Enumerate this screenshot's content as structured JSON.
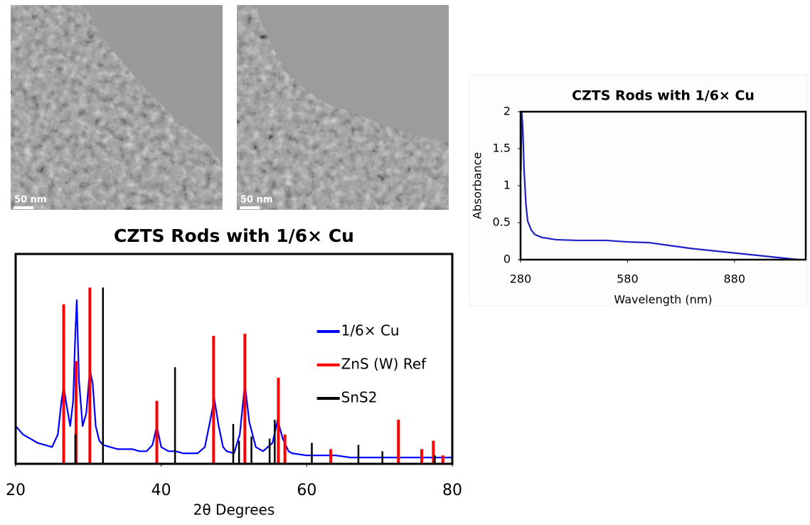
{
  "images": [
    {
      "scale_label": "50 nm"
    },
    {
      "scale_label": "50 nm"
    }
  ],
  "chart_data": [
    {
      "type": "line",
      "title": "CZTS Rods with 1/6× Cu",
      "x_label": "2θ Degrees",
      "xlim": [
        20,
        80
      ],
      "xticks": [
        20,
        40,
        60,
        80
      ],
      "ylim": [
        0,
        100
      ],
      "grid": false,
      "legend": "right",
      "series": [
        {
          "name": "1/6× Cu",
          "color": "#0000ff",
          "style": "line",
          "x": [
            20,
            21,
            22,
            23,
            24,
            25,
            25.8,
            26.3,
            26.6,
            27,
            27.5,
            27.9,
            28.2,
            28.4,
            28.7,
            29.2,
            29.7,
            30.2,
            30.6,
            31,
            31.5,
            32,
            33,
            34,
            35,
            36,
            37,
            38,
            38.8,
            39.4,
            40,
            41,
            42,
            43,
            44,
            45,
            46,
            46.7,
            47.3,
            47.9,
            48.5,
            49,
            50,
            50.8,
            51.5,
            52.1,
            53,
            54,
            55.3,
            56,
            56.7,
            57.5,
            58,
            60,
            62,
            64,
            66,
            68,
            70,
            72,
            74,
            76,
            78,
            80
          ],
          "values": [
            18,
            14,
            12,
            10,
            9,
            8,
            14,
            30,
            37,
            28,
            18,
            30,
            62,
            78,
            40,
            18,
            24,
            45,
            38,
            18,
            11,
            9,
            8,
            7,
            7,
            7,
            6,
            6,
            9,
            18,
            8,
            6,
            6,
            5,
            5,
            5,
            8,
            20,
            31,
            18,
            8,
            6,
            5,
            14,
            38,
            20,
            8,
            6,
            10,
            21,
            12,
            6,
            5,
            4,
            4,
            4,
            3,
            3,
            3,
            3,
            3,
            3,
            3,
            3
          ]
        },
        {
          "name": "ZnS (W) Ref",
          "color": "#ff0000",
          "style": "stick",
          "x": [
            26.6,
            28.3,
            30.2,
            39.4,
            47.2,
            51.5,
            56.1,
            57.0,
            63.3,
            72.6,
            75.8,
            77.4,
            78.7
          ],
          "values": [
            76,
            49,
            84,
            30,
            61,
            62,
            41,
            14,
            7,
            21,
            7,
            11,
            4
          ]
        },
        {
          "name": "SnS2",
          "color": "#000000",
          "style": "stick",
          "x": [
            28.2,
            32.0,
            41.9,
            49.9,
            50.7,
            52.4,
            54.9,
            55.6,
            60.7,
            67.1,
            70.4,
            77.6
          ],
          "values": [
            14,
            84,
            46,
            19,
            11,
            13,
            12,
            21,
            10,
            9,
            6,
            4
          ]
        }
      ]
    },
    {
      "type": "line",
      "title": "CZTS Rods with 1/6× Cu",
      "x_label": "Wavelength (nm)",
      "y_label": "Absorbance",
      "xlim": [
        280,
        1080
      ],
      "xticks": [
        280,
        580,
        880
      ],
      "ylim": [
        0,
        2
      ],
      "yticks": [
        0,
        0.5,
        1,
        1.5,
        2
      ],
      "grid": false,
      "x": [
        281,
        283,
        286,
        290,
        295,
        300,
        310,
        320,
        340,
        380,
        440,
        520,
        580,
        640,
        700,
        760,
        820,
        880,
        940,
        1000,
        1060
      ],
      "series": [
        {
          "color": "#1f1fc8",
          "style": "line",
          "values": [
            1.2,
            2.0,
            1.8,
            1.2,
            0.75,
            0.52,
            0.4,
            0.34,
            0.3,
            0.27,
            0.26,
            0.26,
            0.24,
            0.23,
            0.19,
            0.15,
            0.12,
            0.09,
            0.06,
            0.03,
            0.0
          ]
        }
      ]
    }
  ]
}
